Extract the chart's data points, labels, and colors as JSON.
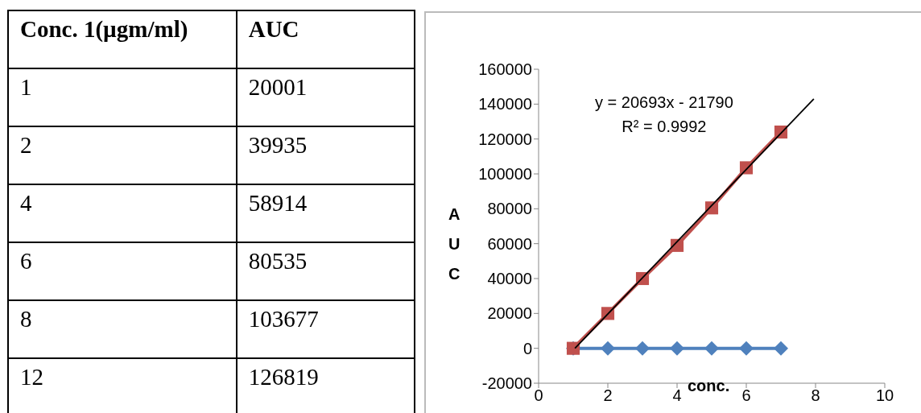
{
  "chart_data": [
    {
      "type": "other",
      "annotations": [
        "Conc. 1(µgm/ml)",
        "AUC",
        "1",
        "20001",
        "2",
        "39935",
        "4",
        "58914",
        "6",
        "80535",
        "8",
        "103677",
        "12",
        "126819"
      ]
    },
    {
      "type": "scatter",
      "xlabel": "conc.",
      "ylabel": "AUC",
      "xlim": [
        0,
        10
      ],
      "xticks": [
        0,
        2,
        4,
        6,
        8,
        10
      ],
      "ylim": [
        -20000,
        160000
      ],
      "yticks": [
        -20000,
        0,
        20000,
        40000,
        60000,
        80000,
        100000,
        120000,
        140000,
        160000
      ],
      "annotations": [
        "y = 20693x - 21790",
        "R² = 0.9992"
      ],
      "series": [
        {
          "type": "line",
          "color": "#4f81bd",
          "marker": "diamond",
          "x": [
            1,
            2,
            3,
            4,
            5,
            6,
            7
          ],
          "values": [
            0,
            0,
            0,
            0,
            0,
            0,
            0
          ]
        },
        {
          "type": "line",
          "color": "#c0504d",
          "marker": "square",
          "x": [
            1,
            2,
            3,
            4,
            5,
            6,
            7
          ],
          "values": [
            0,
            20000,
            40000,
            59000,
            80500,
            103500,
            124000
          ]
        },
        {
          "type": "line",
          "color": "#000000",
          "marker": "none",
          "x": [
            1.05,
            7.95
          ],
          "values": [
            0,
            143000
          ]
        }
      ]
    }
  ]
}
